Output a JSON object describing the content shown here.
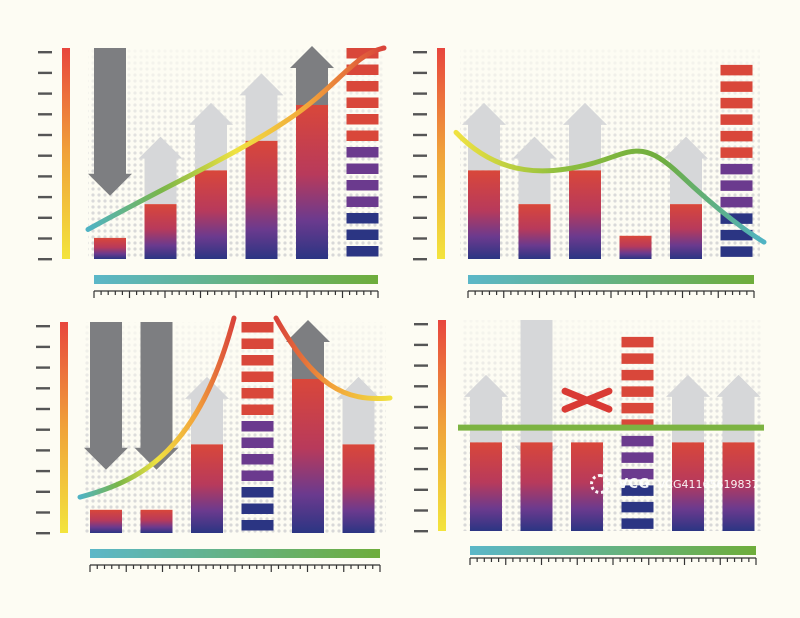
{
  "colors": {
    "background": "#fdfcf3",
    "bar_top": "#d9473a",
    "bar_mid": "#6b3a8e",
    "bar_bottom": "#2b3583",
    "arrow_dark": "#7d7e81",
    "arrow_light": "#d6d7d9",
    "trend_start": "#4fb3c4",
    "trend_mid": "#6fad3e",
    "trend_end": "#d9433a",
    "scale_top": "#e8463d",
    "scale_bottom": "#f3e43c",
    "xbar_left": "#5bb7c8",
    "xbar_right": "#6ead3b",
    "baseline_green": "#7cb342",
    "cross_red": "#d93a34"
  },
  "chart_data": [
    {
      "type": "bar",
      "panel": "top-left",
      "values": [
        1,
        2.6,
        4.2,
        5.6,
        7.3,
        10
      ],
      "segmented_last": true,
      "arrows": [
        "down-dark",
        "up-light",
        "up-light",
        "up-light",
        "up-dark",
        "none"
      ],
      "trend": "rising",
      "trend_colors": [
        "#4fb3c4",
        "#7ab648",
        "#f0e241",
        "#f2a33a",
        "#d9433a"
      ],
      "ylim": [
        0,
        10
      ],
      "grid": "dotted",
      "tick_count": 11,
      "ruler_ticks": 41
    },
    {
      "type": "bar",
      "panel": "top-right",
      "values": [
        4.2,
        2.6,
        4.2,
        1.1,
        2.6,
        9.2
      ],
      "segmented_last": true,
      "arrows": [
        "up-light",
        "up-light",
        "up-light",
        "none",
        "up-light",
        "none"
      ],
      "trend": "falling",
      "trend_colors": [
        "#f0e241",
        "#8fbf3e",
        "#6fad3e",
        "#4fb3c4"
      ],
      "ylim": [
        0,
        10
      ],
      "grid": "dotted",
      "tick_count": 11,
      "ruler_ticks": 41
    },
    {
      "type": "bar",
      "panel": "bottom-left",
      "values": [
        1.1,
        1.1,
        4.2,
        10,
        7.3,
        4.2
      ],
      "segmented": [
        false,
        false,
        false,
        true,
        false,
        false
      ],
      "arrows": [
        "down-dark",
        "down-dark",
        "up-light",
        "none",
        "up-dark",
        "up-light"
      ],
      "trend": "rise-then-fall",
      "trend_colors": [
        "#4fb3c4",
        "#7ab648",
        "#f0e241",
        "#f2a33a",
        "#d9433a"
      ],
      "ylim": [
        0,
        10
      ],
      "grid": "dotted",
      "tick_count": 11,
      "ruler_ticks": 41
    },
    {
      "type": "bar",
      "panel": "bottom-right",
      "values": [
        4.2,
        4.2,
        4.2,
        9.2,
        4.2,
        4.2
      ],
      "segmented": [
        false,
        false,
        false,
        true,
        false,
        false
      ],
      "arrows": [
        "up-light",
        "down-light",
        "cross",
        "none",
        "up-light",
        "up-light"
      ],
      "baseline_value": 4.9,
      "ylim": [
        0,
        10
      ],
      "grid": "dotted",
      "tick_count": 11,
      "ruler_ticks": 41
    }
  ],
  "watermark": {
    "brand": "VCG",
    "id": "VCG41165619837"
  }
}
